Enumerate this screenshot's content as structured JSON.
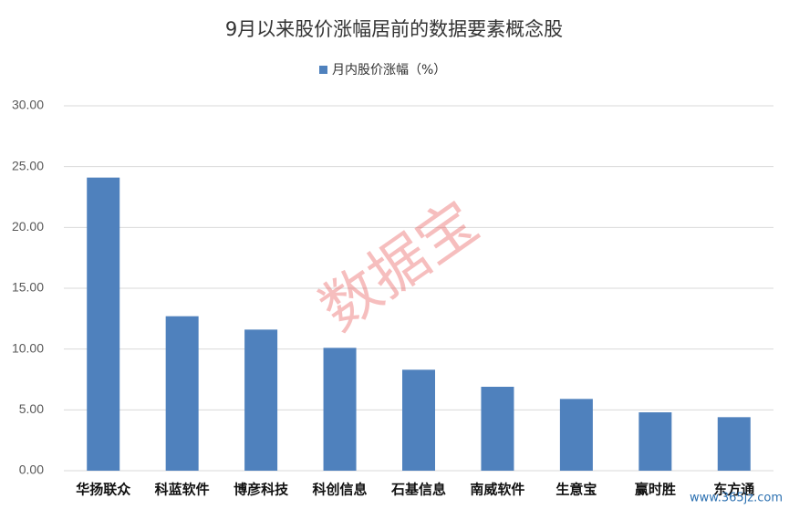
{
  "chart_data": {
    "type": "bar",
    "title": "9月以来股价涨幅居前的数据要素概念股",
    "categories": [
      "华扬联众",
      "科蓝软件",
      "博彦科技",
      "科创信息",
      "石基信息",
      "南威软件",
      "生意宝",
      "赢时胜",
      "东方通"
    ],
    "series": [
      {
        "name": "月内股价涨幅（%）",
        "color": "#4f81bd",
        "values": [
          24.1,
          12.7,
          11.6,
          10.1,
          8.3,
          6.9,
          5.9,
          4.8,
          4.4
        ]
      }
    ],
    "ylim": [
      0,
      30
    ],
    "yticks": [
      {
        "value": 0,
        "label": "0.00"
      },
      {
        "value": 5,
        "label": "5.00"
      },
      {
        "value": 10,
        "label": "10.00"
      },
      {
        "value": 15,
        "label": "15.00"
      },
      {
        "value": 20,
        "label": "20.00"
      },
      {
        "value": 25,
        "label": "25.00"
      },
      {
        "value": 30,
        "label": "30.00"
      }
    ],
    "grid": true,
    "legend": "top",
    "watermark": "数据宝",
    "site_watermark": "www.365jz.com"
  }
}
